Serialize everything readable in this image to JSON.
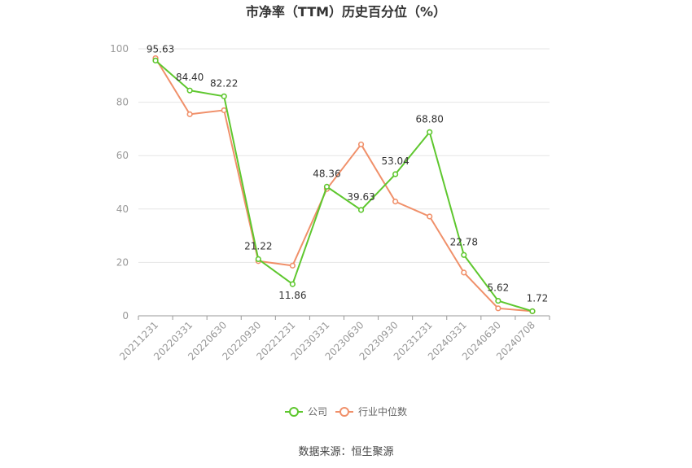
{
  "chart_data": {
    "type": "line",
    "title": "市净率（TTM）历史百分位（%）",
    "categories": [
      "20211231",
      "20220331",
      "20220630",
      "20220930",
      "20221231",
      "20230331",
      "20230630",
      "20230930",
      "20231231",
      "20240331",
      "20240630",
      "20240708"
    ],
    "ylim": [
      0,
      100
    ],
    "yticks": [
      0,
      20,
      40,
      60,
      80,
      100
    ],
    "grid": true,
    "legend_position": "bottom",
    "series": [
      {
        "name": "公司",
        "color": "#5ec72e",
        "values": [
          95.63,
          84.4,
          82.22,
          21.22,
          11.86,
          48.36,
          39.63,
          53.04,
          68.8,
          22.78,
          5.62,
          1.72
        ],
        "labels": [
          "95.63",
          "84.40",
          "82.22",
          "21.22",
          "11.86",
          "48.36",
          "39.63",
          "53.04",
          "68.80",
          "22.78",
          "5.62",
          "1.72"
        ]
      },
      {
        "name": "行业中位数",
        "color": "#f0906a",
        "values": [
          96.5,
          75.5,
          77.0,
          20.5,
          18.8,
          47.5,
          64.2,
          42.8,
          37.2,
          16.2,
          2.8,
          1.7
        ]
      }
    ],
    "source": "数据来源：恒生聚源"
  }
}
